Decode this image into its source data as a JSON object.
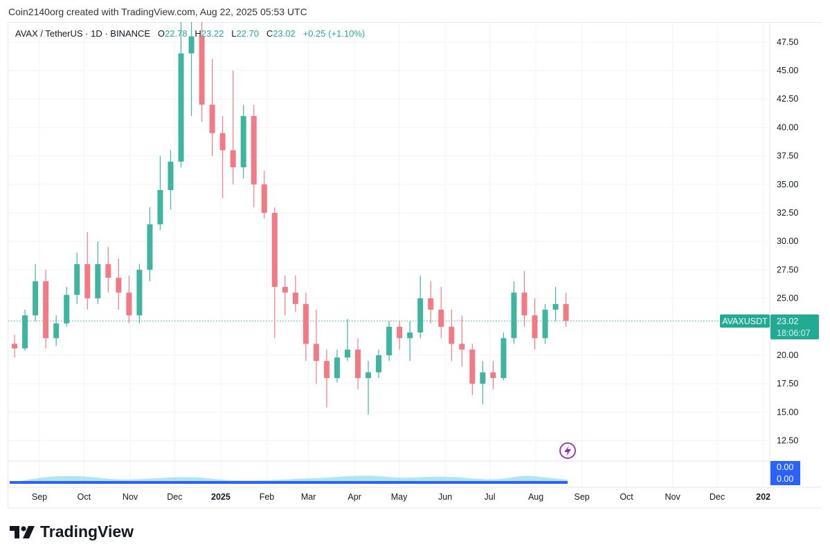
{
  "credit": "Coin2140org created with TradingView.com, Aug 22, 2025 05:53 UTC",
  "legend": {
    "symbol": "AVAX / TetherUS · 1D · BINANCE",
    "o_label": "O",
    "o": "22.78",
    "h_label": "H",
    "h": "23.22",
    "l_label": "L",
    "l": "22.70",
    "c_label": "C",
    "c": "23.02",
    "change": "+0.25 (+1.10%)"
  },
  "price_label": {
    "ticker": "AVAXUSDT",
    "price": "23.02",
    "countdown": "18:06:07"
  },
  "volume_labels": [
    "0.00",
    "0.00"
  ],
  "brand": "TradingView",
  "colors": {
    "up": "#3fb59f",
    "down": "#f27a85",
    "price_line": "#22ab94",
    "volume_badge": "#2962ff",
    "lightning": "#9c27b0"
  },
  "icons": {
    "lightning": "lightning-icon",
    "logo": "tradingview-logo"
  },
  "chart_data": {
    "type": "candlestick",
    "interval": "1D",
    "note_values": "approximate OHLC, sampled weekly",
    "columns": [
      "date",
      "open",
      "high",
      "low",
      "close"
    ],
    "candles": [
      [
        "2024-08-12",
        21.0,
        21.8,
        19.8,
        20.6
      ],
      [
        "2024-08-19",
        20.6,
        24.0,
        20.4,
        23.5
      ],
      [
        "2024-08-26",
        23.5,
        28.0,
        23.0,
        26.5
      ],
      [
        "2024-09-02",
        26.5,
        27.5,
        20.6,
        21.5
      ],
      [
        "2024-09-09",
        21.5,
        23.5,
        20.8,
        22.8
      ],
      [
        "2024-09-16",
        22.8,
        26.0,
        22.5,
        25.3
      ],
      [
        "2024-09-23",
        25.3,
        29.0,
        24.5,
        28.0
      ],
      [
        "2024-09-30",
        28.0,
        30.8,
        24.0,
        25.0
      ],
      [
        "2024-10-07",
        25.0,
        30.0,
        24.5,
        28.0
      ],
      [
        "2024-10-14",
        28.0,
        29.5,
        25.5,
        26.8
      ],
      [
        "2024-10-21",
        26.8,
        28.5,
        24.0,
        25.5
      ],
      [
        "2024-10-28",
        25.5,
        27.0,
        22.8,
        23.5
      ],
      [
        "2024-11-04",
        23.5,
        28.0,
        22.8,
        27.5
      ],
      [
        "2024-11-11",
        27.5,
        33.0,
        26.5,
        31.5
      ],
      [
        "2024-11-18",
        31.5,
        37.5,
        31.0,
        34.5
      ],
      [
        "2024-11-25",
        34.5,
        38.0,
        32.8,
        37.0
      ],
      [
        "2024-12-02",
        37.0,
        49.5,
        36.5,
        46.5
      ],
      [
        "2024-12-09",
        46.5,
        49.5,
        41.0,
        48.0
      ],
      [
        "2024-12-16",
        48.0,
        50.0,
        40.5,
        42.0
      ],
      [
        "2024-12-23",
        42.0,
        46.0,
        37.5,
        39.5
      ],
      [
        "2024-12-30",
        39.5,
        41.0,
        33.8,
        38.0
      ],
      [
        "2025-01-06",
        38.0,
        45.0,
        35.0,
        36.5
      ],
      [
        "2025-01-13",
        36.5,
        42.0,
        35.5,
        41.0
      ],
      [
        "2025-01-20",
        41.0,
        42.0,
        33.0,
        35.0
      ],
      [
        "2025-01-27",
        35.0,
        36.2,
        32.0,
        32.5
      ],
      [
        "2025-02-03",
        32.5,
        33.0,
        21.5,
        26.0
      ],
      [
        "2025-02-10",
        26.0,
        27.0,
        23.5,
        25.5
      ],
      [
        "2025-02-17",
        25.5,
        27.0,
        23.8,
        24.5
      ],
      [
        "2025-02-24",
        24.5,
        25.5,
        19.5,
        21.0
      ],
      [
        "2025-03-03",
        21.0,
        24.0,
        17.5,
        19.5
      ],
      [
        "2025-03-10",
        19.5,
        20.5,
        15.4,
        18.0
      ],
      [
        "2025-03-17",
        18.0,
        20.5,
        17.6,
        19.8
      ],
      [
        "2025-03-24",
        19.8,
        23.2,
        19.5,
        20.5
      ],
      [
        "2025-03-31",
        20.5,
        21.5,
        17.0,
        18.0
      ],
      [
        "2025-04-07",
        18.0,
        19.5,
        14.8,
        18.5
      ],
      [
        "2025-04-14",
        18.5,
        20.5,
        18.0,
        20.0
      ],
      [
        "2025-04-21",
        20.0,
        23.0,
        19.5,
        22.5
      ],
      [
        "2025-04-28",
        22.5,
        23.0,
        20.5,
        21.5
      ],
      [
        "2025-05-05",
        21.5,
        23.0,
        19.5,
        22.0
      ],
      [
        "2025-05-12",
        22.0,
        27.0,
        21.5,
        25.0
      ],
      [
        "2025-05-19",
        25.0,
        26.5,
        22.8,
        24.0
      ],
      [
        "2025-05-26",
        24.0,
        26.0,
        21.5,
        22.5
      ],
      [
        "2025-06-02",
        22.5,
        24.0,
        19.5,
        21.0
      ],
      [
        "2025-06-09",
        21.0,
        23.5,
        19.0,
        20.5
      ],
      [
        "2025-06-16",
        20.5,
        21.0,
        16.5,
        17.5
      ],
      [
        "2025-06-23",
        17.5,
        19.5,
        15.7,
        18.5
      ],
      [
        "2025-06-30",
        18.5,
        19.5,
        17.0,
        18.0
      ],
      [
        "2025-07-07",
        18.0,
        22.0,
        17.8,
        21.5
      ],
      [
        "2025-07-14",
        21.5,
        26.5,
        21.0,
        25.5
      ],
      [
        "2025-07-21",
        25.5,
        27.4,
        22.5,
        23.5
      ],
      [
        "2025-07-28",
        23.5,
        25.0,
        20.5,
        21.5
      ],
      [
        "2025-08-04",
        21.5,
        24.5,
        21.0,
        24.0
      ],
      [
        "2025-08-11",
        24.0,
        26.0,
        23.0,
        24.5
      ],
      [
        "2025-08-18",
        24.5,
        25.5,
        22.5,
        23.02
      ]
    ],
    "y_ticks": [
      "47.50",
      "45.00",
      "42.50",
      "40.00",
      "37.50",
      "35.00",
      "32.50",
      "30.00",
      "27.50",
      "25.00",
      "20.00",
      "17.50",
      "15.00",
      "12.50"
    ],
    "x_ticks": [
      {
        "label": "Sep",
        "date": "2024-09-01"
      },
      {
        "label": "Oct",
        "date": "2024-10-01"
      },
      {
        "label": "Nov",
        "date": "2024-11-01"
      },
      {
        "label": "Dec",
        "date": "2024-12-01"
      },
      {
        "label": "2025",
        "date": "2025-01-01",
        "bold": true
      },
      {
        "label": "Feb",
        "date": "2025-02-01"
      },
      {
        "label": "Mar",
        "date": "2025-03-01"
      },
      {
        "label": "Apr",
        "date": "2025-04-01"
      },
      {
        "label": "May",
        "date": "2025-05-01"
      },
      {
        "label": "Jun",
        "date": "2025-06-01"
      },
      {
        "label": "Jul",
        "date": "2025-07-01"
      },
      {
        "label": "Aug",
        "date": "2025-08-01"
      },
      {
        "label": "Sep",
        "date": "2025-09-01"
      },
      {
        "label": "Oct",
        "date": "2025-10-01"
      },
      {
        "label": "Nov",
        "date": "2025-11-01"
      },
      {
        "label": "Dec",
        "date": "2025-12-01"
      },
      {
        "label": "202",
        "date": "2026-01-01",
        "bold": true
      }
    ],
    "ylim": [
      11.5,
      49
    ],
    "last_price": 23.02,
    "grid": true
  }
}
